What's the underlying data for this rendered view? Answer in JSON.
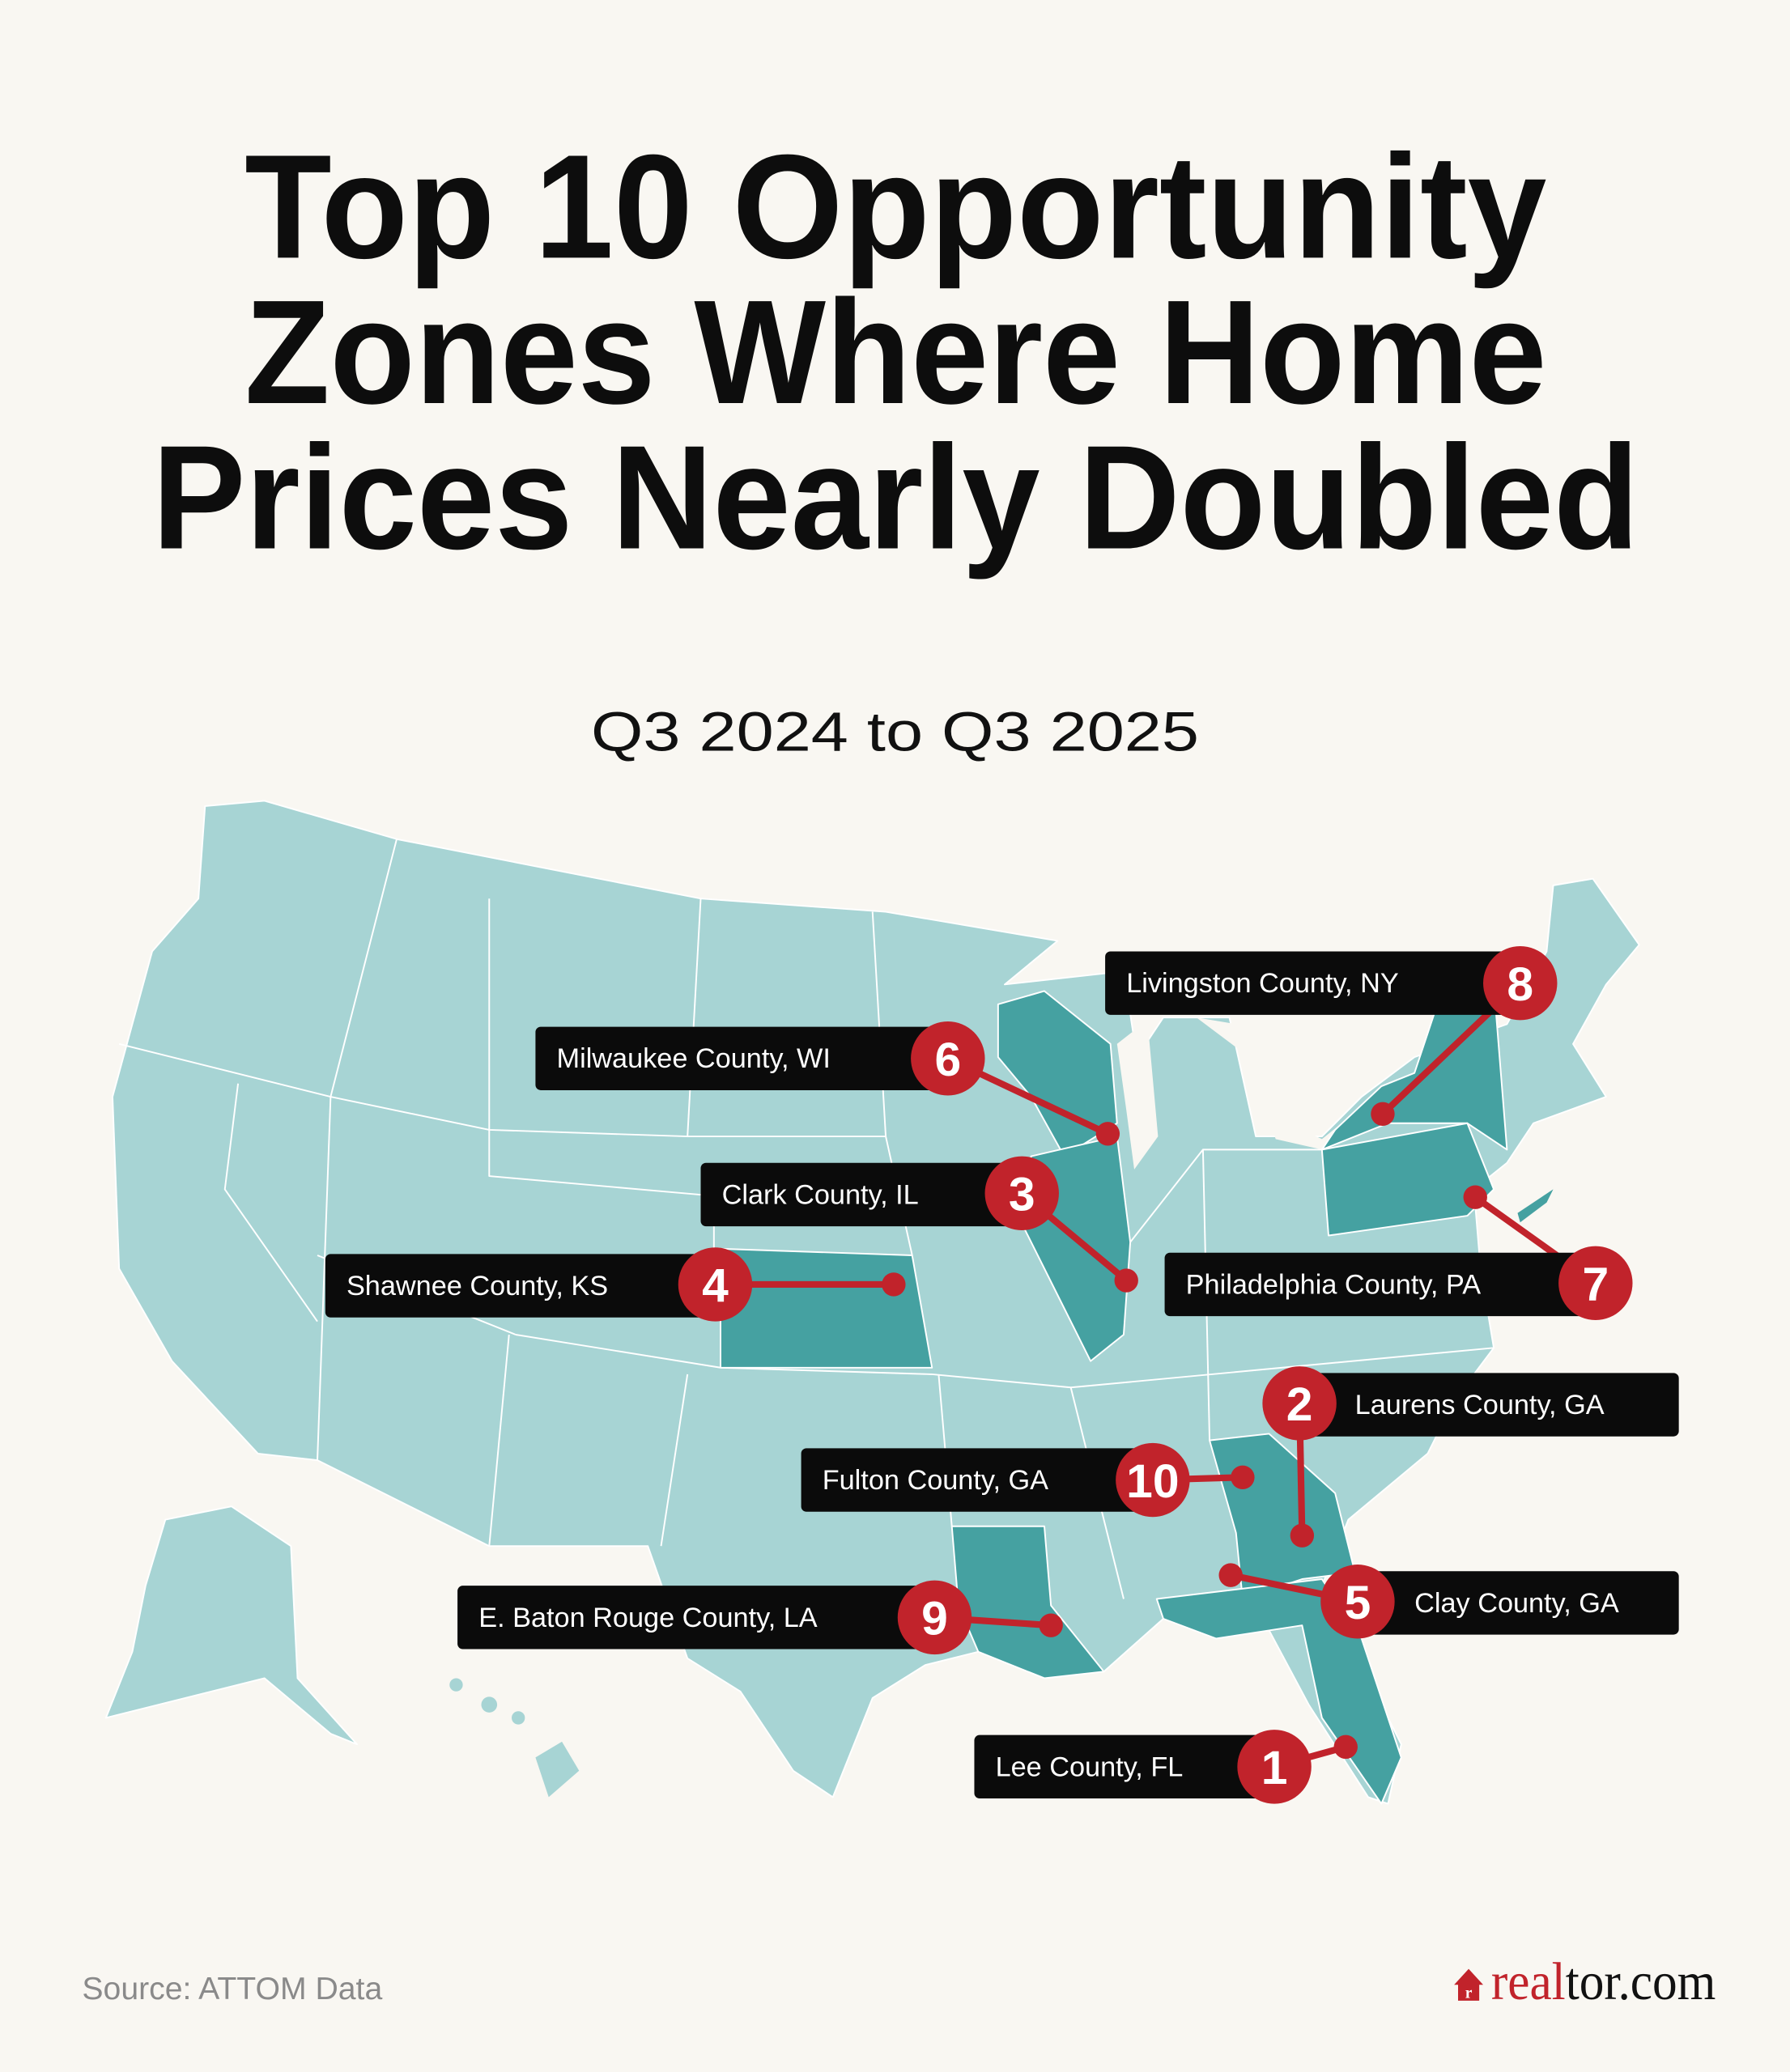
{
  "title": {
    "lines": [
      "Top 10 Opportunity",
      "Zones Where Home",
      "Prices Nearly Doubled"
    ]
  },
  "subtitle": "Q3 2024 to Q3 2025",
  "colors": {
    "background": "#f9f7f2",
    "base_state": "#a7d4d4",
    "highlighted_state": "#45a1a1",
    "marker": "#c1232b",
    "label_bg": "#0b0b0b"
  },
  "markers": [
    {
      "rank": "1",
      "label": "Lee County, FL",
      "state": "FL"
    },
    {
      "rank": "2",
      "label": "Laurens County, GA",
      "state": "GA"
    },
    {
      "rank": "3",
      "label": "Clark County, IL",
      "state": "IL"
    },
    {
      "rank": "4",
      "label": "Shawnee County, KS",
      "state": "KS"
    },
    {
      "rank": "5",
      "label": "Clay County, GA",
      "state": "GA"
    },
    {
      "rank": "6",
      "label": "Milwaukee County, WI",
      "state": "WI"
    },
    {
      "rank": "7",
      "label": "Philadelphia County, PA",
      "state": "PA"
    },
    {
      "rank": "8",
      "label": "Livingston County, NY",
      "state": "NY"
    },
    {
      "rank": "9",
      "label": "E. Baton Rouge County, LA",
      "state": "LA"
    },
    {
      "rank": "10",
      "label": "Fulton County, GA",
      "state": "GA"
    }
  ],
  "footer": {
    "source": "Source: ATTOM Data",
    "logo_red": "real",
    "logo_black": "tor.com",
    "logo_icon": "house-r-icon"
  }
}
